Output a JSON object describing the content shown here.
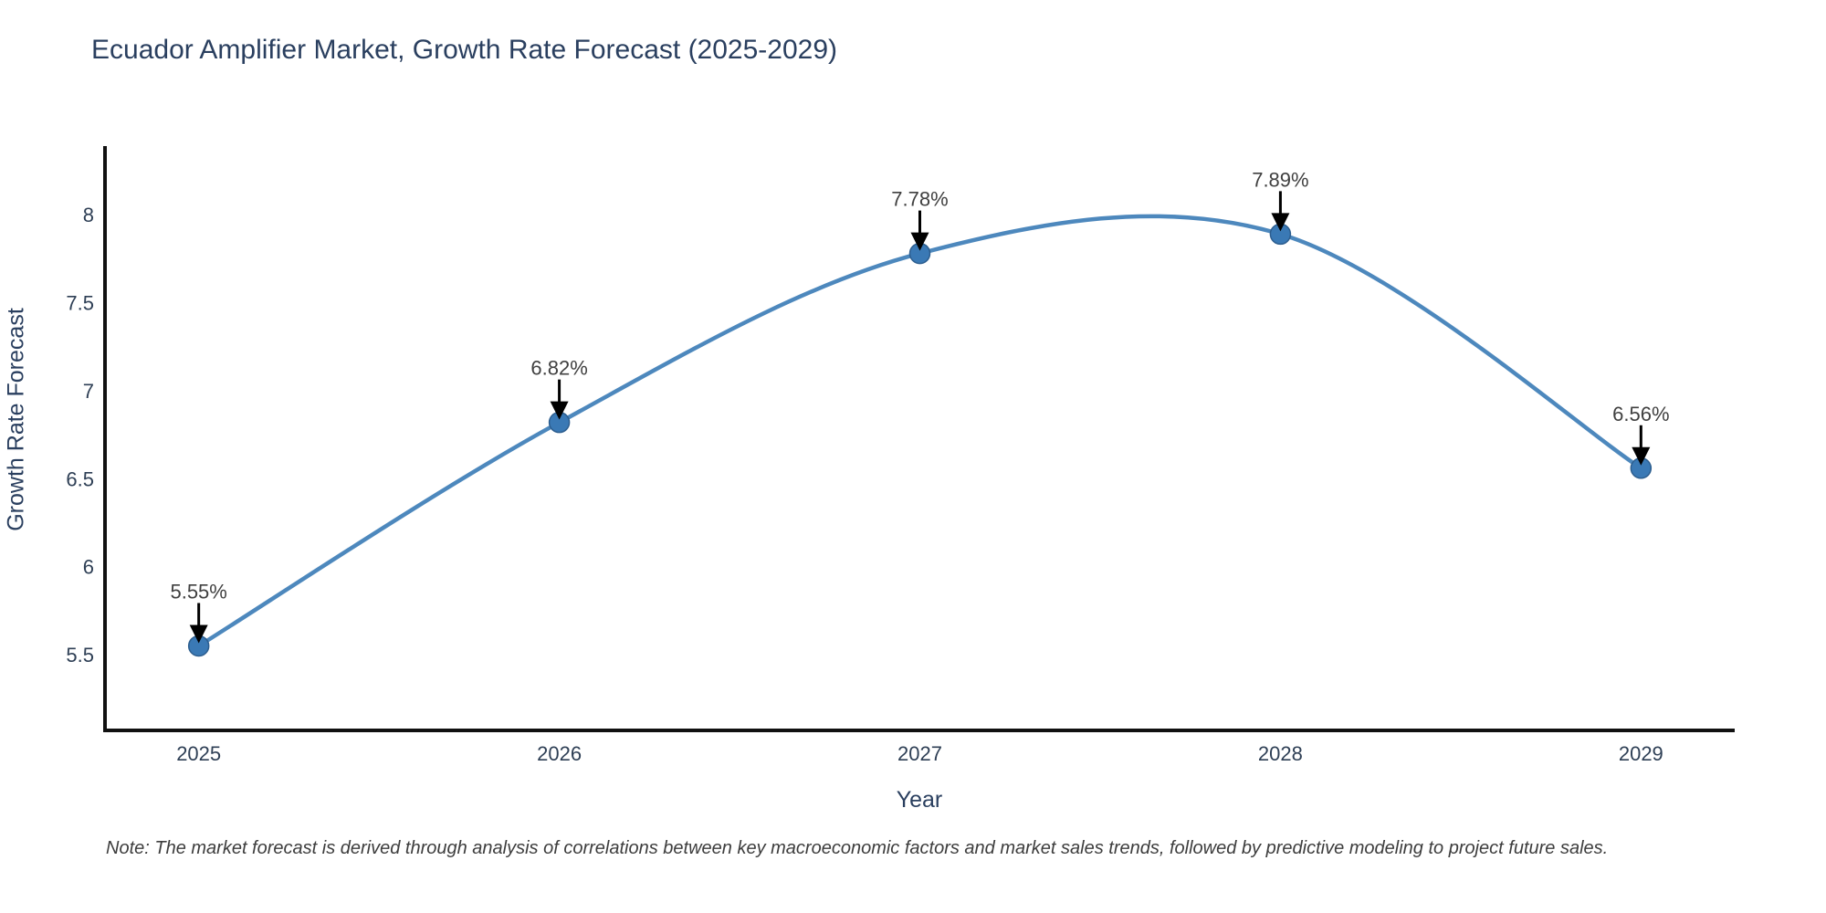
{
  "chart": {
    "title": "Ecuador Amplifier Market, Growth Rate Forecast (2025-2029)",
    "note": "Note: The market forecast is derived through analysis of correlations between key macroeconomic factors and market sales trends, followed by predictive modeling to project future sales."
  },
  "chart_data": {
    "type": "line",
    "title": "Ecuador Amplifier Market, Growth Rate Forecast (2025-2029)",
    "xlabel": "Year",
    "ylabel": "Growth Rate Forecast",
    "x": [
      2025,
      2026,
      2027,
      2028,
      2029
    ],
    "values": [
      5.55,
      6.82,
      7.78,
      7.89,
      6.56
    ],
    "point_labels": [
      "5.55%",
      "6.82%",
      "7.78%",
      "7.89%",
      "6.56%"
    ],
    "x_tick_labels": [
      "2025",
      "2026",
      "2027",
      "2028",
      "2029"
    ],
    "y_tick_values": [
      5.5,
      6,
      6.5,
      7,
      7.5,
      8
    ],
    "y_tick_labels": [
      "5.5",
      "6",
      "6.5",
      "7",
      "7.5",
      "8"
    ],
    "xlim": [
      2024.74,
      2029.26
    ],
    "ylim": [
      5.07,
      8.39
    ],
    "grid": false,
    "legend_position": "none",
    "line_shape": "spline",
    "colors": {
      "line": "#4d88bd",
      "marker_fill": "#3a79b5",
      "marker_edge": "#2d5e8f",
      "axis_line": "#111111",
      "tick_text": "#2e3f55",
      "annotation_text": "#404040",
      "arrow": "#000000",
      "title_text": "#2a3f5f"
    }
  }
}
